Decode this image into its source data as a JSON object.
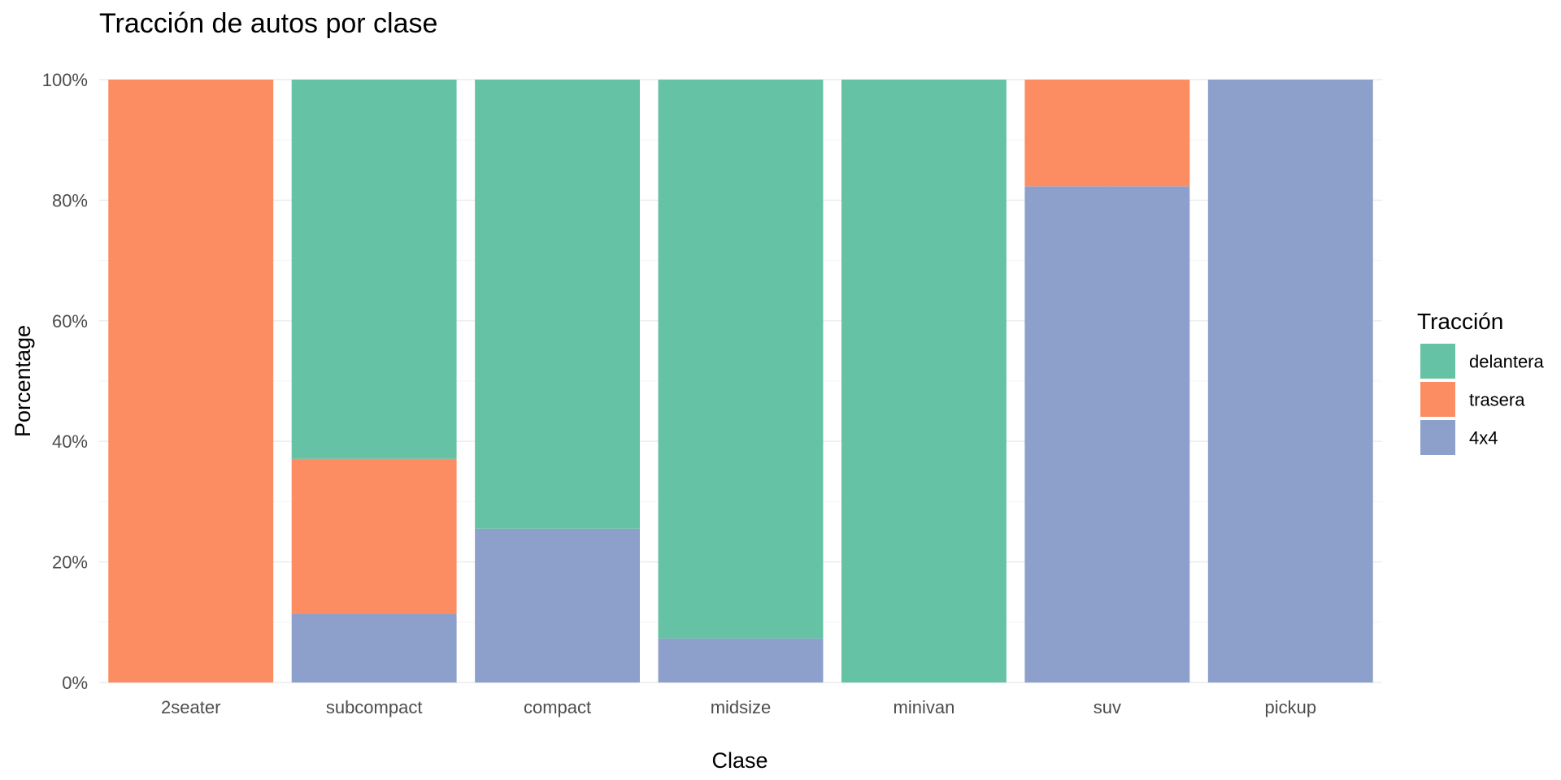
{
  "chart_data": {
    "type": "bar",
    "stacked": true,
    "normalized": true,
    "title": "Tracción de autos por clase",
    "xlabel": "Clase",
    "ylabel": "Porcentage",
    "ylim": [
      0,
      1
    ],
    "yticks": [
      0,
      0.2,
      0.4,
      0.6,
      0.8,
      1.0
    ],
    "ytick_labels": [
      "0%",
      "20%",
      "40%",
      "60%",
      "80%",
      "100%"
    ],
    "grid": true,
    "legend": {
      "title": "Tracción",
      "position": "right"
    },
    "categories": [
      "2seater",
      "subcompact",
      "compact",
      "midsize",
      "minivan",
      "suv",
      "pickup"
    ],
    "series": [
      {
        "name": "delantera",
        "color": "#66c2a5",
        "values": [
          0,
          0.629,
          0.745,
          0.927,
          1.0,
          0,
          0
        ]
      },
      {
        "name": "trasera",
        "color": "#fc8d62",
        "values": [
          1.0,
          0.257,
          0,
          0,
          0,
          0.177,
          0
        ]
      },
      {
        "name": "4x4",
        "color": "#8da0cb",
        "values": [
          0,
          0.114,
          0.255,
          0.073,
          0,
          0.823,
          1.0
        ]
      }
    ]
  }
}
